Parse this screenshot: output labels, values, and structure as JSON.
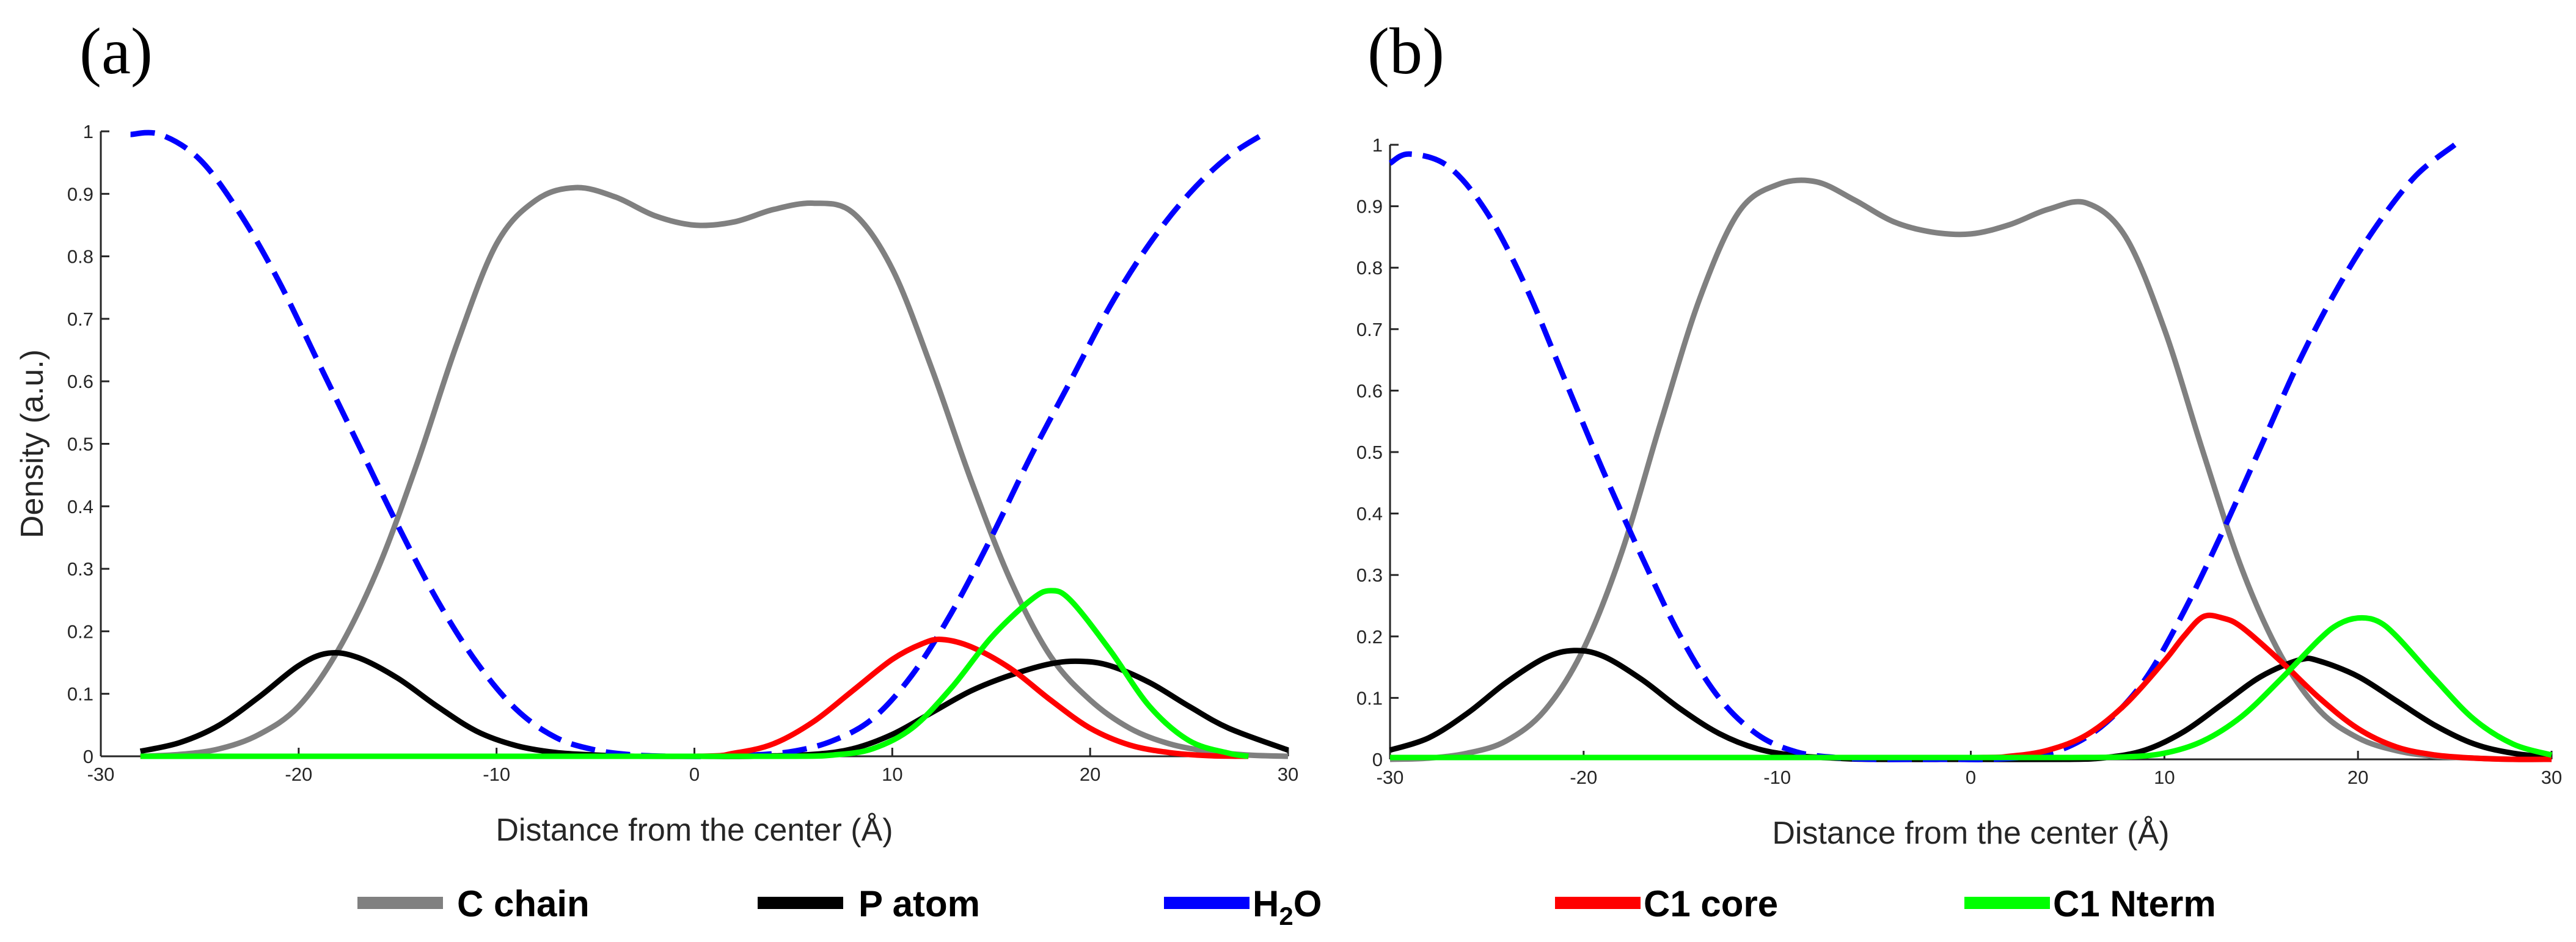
{
  "figure_labels": [
    "(a)",
    "(b)"
  ],
  "legend": [
    {
      "label": "C chain",
      "color": "#808080"
    },
    {
      "label": "P atom",
      "color": "#000000"
    },
    {
      "label": "H",
      "subscript": "2",
      "suffix": "O",
      "color": "#0000ff"
    },
    {
      "label": "C1 core",
      "color": "#ff0000"
    },
    {
      "label": "C1 Nterm",
      "color": "#00ff00"
    }
  ],
  "chart_data": [
    {
      "type": "line",
      "panel": "(a)",
      "xlabel": "Distance from the center (Å)",
      "ylabel": "Density (a.u.)",
      "xlim": [
        -30,
        30
      ],
      "ylim": [
        0,
        1
      ],
      "xticks": [
        "-30",
        "-20",
        "-10",
        "0",
        "10",
        "20",
        "30"
      ],
      "yticks": [
        "0",
        "0.1",
        "0.2",
        "0.3",
        "0.4",
        "0.5",
        "0.6",
        "0.7",
        "0.8",
        "0.9",
        "1"
      ],
      "series": [
        {
          "name": "C chain",
          "color": "#808080",
          "dash": false,
          "x": [
            -28,
            -26,
            -24,
            -22,
            -20,
            -18,
            -16,
            -14,
            -12,
            -10,
            -8,
            -6,
            -4,
            -2,
            0,
            2,
            4,
            6,
            8,
            10,
            12,
            14,
            16,
            18,
            20,
            22,
            24,
            26,
            28,
            30
          ],
          "y": [
            0.0,
            0.003,
            0.012,
            0.035,
            0.08,
            0.17,
            0.3,
            0.47,
            0.66,
            0.82,
            0.89,
            0.91,
            0.895,
            0.865,
            0.85,
            0.855,
            0.875,
            0.885,
            0.87,
            0.78,
            0.62,
            0.44,
            0.28,
            0.16,
            0.09,
            0.045,
            0.02,
            0.008,
            0.002,
            0.0
          ]
        },
        {
          "name": "P atom",
          "color": "#000000",
          "dash": false,
          "x": [
            -28,
            -26,
            -24,
            -22,
            -20,
            -18.5,
            -17,
            -15,
            -13,
            -11,
            -9,
            -7,
            -5,
            -3,
            0,
            3,
            6,
            8,
            10,
            12,
            14,
            16,
            18,
            19.5,
            21,
            23,
            25,
            27,
            30
          ],
          "y": [
            0.008,
            0.022,
            0.05,
            0.095,
            0.145,
            0.165,
            0.158,
            0.125,
            0.08,
            0.04,
            0.017,
            0.006,
            0.002,
            0.0,
            0.0,
            0.0,
            0.003,
            0.012,
            0.035,
            0.07,
            0.105,
            0.13,
            0.148,
            0.152,
            0.145,
            0.118,
            0.08,
            0.045,
            0.01
          ]
        },
        {
          "name": "H2O",
          "color": "#0000ff",
          "dash": true,
          "x": [
            -28.5,
            -27,
            -25,
            -23,
            -21,
            -19,
            -17,
            -15,
            -13,
            -11,
            -9,
            -7,
            -5,
            -3,
            -1,
            1,
            3,
            5,
            7,
            9,
            11,
            13,
            15,
            17,
            19,
            21,
            23,
            25,
            27,
            29
          ],
          "y": [
            0.995,
            0.995,
            0.955,
            0.87,
            0.76,
            0.63,
            0.5,
            0.37,
            0.25,
            0.15,
            0.075,
            0.03,
            0.01,
            0.002,
            0.0,
            0.0,
            0.002,
            0.008,
            0.025,
            0.06,
            0.13,
            0.23,
            0.35,
            0.48,
            0.6,
            0.72,
            0.82,
            0.9,
            0.96,
            1.0
          ]
        },
        {
          "name": "C1 core",
          "color": "#ff0000",
          "dash": false,
          "x": [
            -28,
            -10,
            0,
            2,
            4,
            6,
            8,
            10,
            11.5,
            12.5,
            14,
            16,
            18,
            20,
            22,
            24,
            26,
            28
          ],
          "y": [
            0.0,
            0.0,
            0.0,
            0.005,
            0.02,
            0.055,
            0.105,
            0.155,
            0.18,
            0.187,
            0.175,
            0.14,
            0.09,
            0.045,
            0.018,
            0.006,
            0.001,
            0.0
          ]
        },
        {
          "name": "C1 Nterm",
          "color": "#00ff00",
          "dash": false,
          "x": [
            -28,
            -10,
            0,
            5,
            7,
            9,
            11,
            13,
            15,
            17,
            18,
            19,
            21,
            23,
            25,
            27,
            28
          ],
          "y": [
            0.0,
            0.0,
            0.0,
            0.0,
            0.002,
            0.012,
            0.045,
            0.11,
            0.19,
            0.25,
            0.265,
            0.25,
            0.17,
            0.08,
            0.025,
            0.005,
            0.0
          ]
        }
      ]
    },
    {
      "type": "line",
      "panel": "(b)",
      "xlabel": "Distance from the center (Å)",
      "ylabel": "",
      "xlim": [
        -30,
        30
      ],
      "ylim": [
        0,
        1
      ],
      "xticks": [
        "-30",
        "-20",
        "-10",
        "0",
        "10",
        "20",
        "30"
      ],
      "yticks": [
        "0",
        "0.1",
        "0.2",
        "0.3",
        "0.4",
        "0.5",
        "0.6",
        "0.7",
        "0.8",
        "0.9",
        "1"
      ],
      "series": [
        {
          "name": "C chain",
          "color": "#808080",
          "dash": false,
          "x": [
            -30,
            -28,
            -26,
            -24,
            -22,
            -20,
            -18,
            -16,
            -14,
            -12,
            -10,
            -8,
            -6,
            -4,
            -2,
            0,
            2,
            4,
            6,
            8,
            10,
            12,
            14,
            16,
            18,
            20,
            22,
            24,
            26,
            28,
            30
          ],
          "y": [
            0.0,
            0.002,
            0.01,
            0.03,
            0.08,
            0.18,
            0.34,
            0.55,
            0.75,
            0.89,
            0.935,
            0.94,
            0.91,
            0.875,
            0.858,
            0.855,
            0.87,
            0.895,
            0.905,
            0.85,
            0.7,
            0.5,
            0.31,
            0.17,
            0.08,
            0.035,
            0.014,
            0.005,
            0.002,
            0.0,
            0.0
          ]
        },
        {
          "name": "P atom",
          "color": "#000000",
          "dash": false,
          "x": [
            -30,
            -28,
            -26,
            -24,
            -22,
            -20.5,
            -19,
            -17,
            -15,
            -13,
            -11,
            -9,
            -7,
            -5,
            0,
            5,
            7,
            9,
            11,
            13,
            15,
            17,
            18,
            20,
            22,
            24,
            26,
            28,
            30
          ],
          "y": [
            0.015,
            0.035,
            0.075,
            0.125,
            0.165,
            0.177,
            0.168,
            0.13,
            0.082,
            0.042,
            0.017,
            0.006,
            0.002,
            0.0,
            0.0,
            0.0,
            0.003,
            0.015,
            0.045,
            0.09,
            0.135,
            0.162,
            0.16,
            0.135,
            0.095,
            0.055,
            0.025,
            0.01,
            0.003
          ]
        },
        {
          "name": "H2O",
          "color": "#0000ff",
          "dash": true,
          "x": [
            -30,
            -29,
            -27,
            -25,
            -23,
            -21,
            -19,
            -17,
            -15,
            -13,
            -11,
            -9,
            -7,
            -5,
            -3,
            -1,
            1,
            3,
            5,
            7,
            9,
            11,
            13,
            15,
            17,
            19,
            21,
            23,
            25
          ],
          "y": [
            0.97,
            0.985,
            0.965,
            0.89,
            0.77,
            0.62,
            0.47,
            0.33,
            0.2,
            0.1,
            0.04,
            0.012,
            0.003,
            0.0,
            0.0,
            0.0,
            0.0,
            0.005,
            0.02,
            0.06,
            0.13,
            0.24,
            0.37,
            0.51,
            0.65,
            0.77,
            0.87,
            0.95,
            1.0
          ]
        },
        {
          "name": "C1 core",
          "color": "#ff0000",
          "dash": false,
          "x": [
            -30,
            -10,
            0,
            2,
            4,
            6,
            8,
            10,
            11,
            12,
            13,
            14,
            16,
            18,
            20,
            22,
            24,
            26,
            28,
            30
          ],
          "y": [
            0.003,
            0.003,
            0.003,
            0.005,
            0.015,
            0.04,
            0.09,
            0.16,
            0.2,
            0.232,
            0.23,
            0.215,
            0.16,
            0.1,
            0.05,
            0.02,
            0.007,
            0.002,
            0.0,
            0.0
          ]
        },
        {
          "name": "C1 Nterm",
          "color": "#00ff00",
          "dash": false,
          "x": [
            -30,
            -10,
            0,
            5,
            8,
            10,
            12,
            14,
            16,
            18,
            19,
            20,
            21,
            22,
            24,
            26,
            28,
            30
          ],
          "y": [
            0.003,
            0.003,
            0.003,
            0.003,
            0.004,
            0.01,
            0.03,
            0.07,
            0.13,
            0.195,
            0.22,
            0.23,
            0.225,
            0.2,
            0.13,
            0.065,
            0.025,
            0.007
          ]
        }
      ]
    }
  ]
}
